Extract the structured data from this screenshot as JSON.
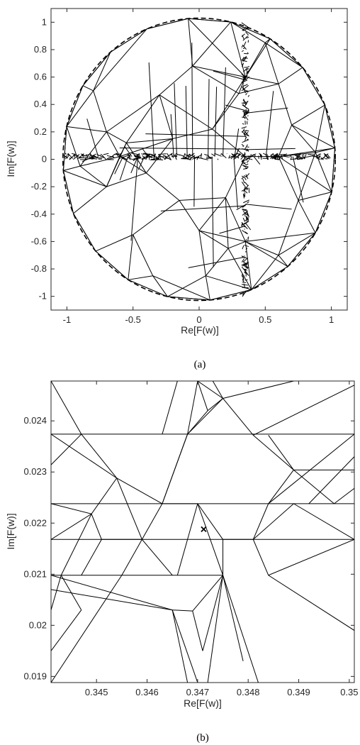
{
  "colors": {
    "mesh": "#000000",
    "axis": "#262626",
    "boundary": "#000000",
    "background": "#ffffff"
  },
  "chart_data": [
    {
      "type": "mesh",
      "caption": "(a)",
      "xlabel": "Re[F(w)]",
      "ylabel": "Im[F(w)]",
      "xlim": [
        -1.12,
        1.12
      ],
      "ylim": [
        -1.1,
        1.1
      ],
      "xticks": [
        -1,
        -0.5,
        0,
        0.5,
        1
      ],
      "xtick_labels": [
        "-1",
        "-0.5",
        "0",
        "0.5",
        "1"
      ],
      "yticks": [
        1,
        0.8,
        0.6,
        0.4,
        0.2,
        0,
        -0.2,
        -0.4,
        -0.6,
        -0.8,
        -1
      ],
      "ytick_labels": [
        "1",
        "0.8",
        "0.6",
        "0.4",
        "0.2",
        "0",
        "-0.2",
        "-0.4",
        "-0.6",
        "-0.8",
        "-1"
      ],
      "boundary": {
        "shape": "circle",
        "radius": 1.03,
        "style": "dashed"
      },
      "dense_lines": {
        "vertical_at_x": 0.35,
        "horizontal_at_y": 0.02
      },
      "grid": false
    },
    {
      "type": "mesh",
      "caption": "(b)",
      "xlabel": "Re[F(w)]",
      "ylabel": "Im[F(w)]",
      "xlim": [
        0.3441,
        0.3501
      ],
      "ylim": [
        0.01888,
        0.02478
      ],
      "xticks": [
        0.345,
        0.346,
        0.347,
        0.348,
        0.349,
        0.35
      ],
      "xtick_labels": [
        "0.345",
        "0.346",
        "0.347",
        "0.348",
        "0.349",
        "0.35"
      ],
      "yticks": [
        0.024,
        0.023,
        0.022,
        0.021,
        0.02,
        0.019
      ],
      "ytick_labels": [
        "0.024",
        "0.023",
        "0.022",
        "0.021",
        "0.02",
        "0.019"
      ],
      "marker": {
        "symbol": "x",
        "x": 0.34712,
        "y": 0.02188
      },
      "grid": false
    }
  ]
}
